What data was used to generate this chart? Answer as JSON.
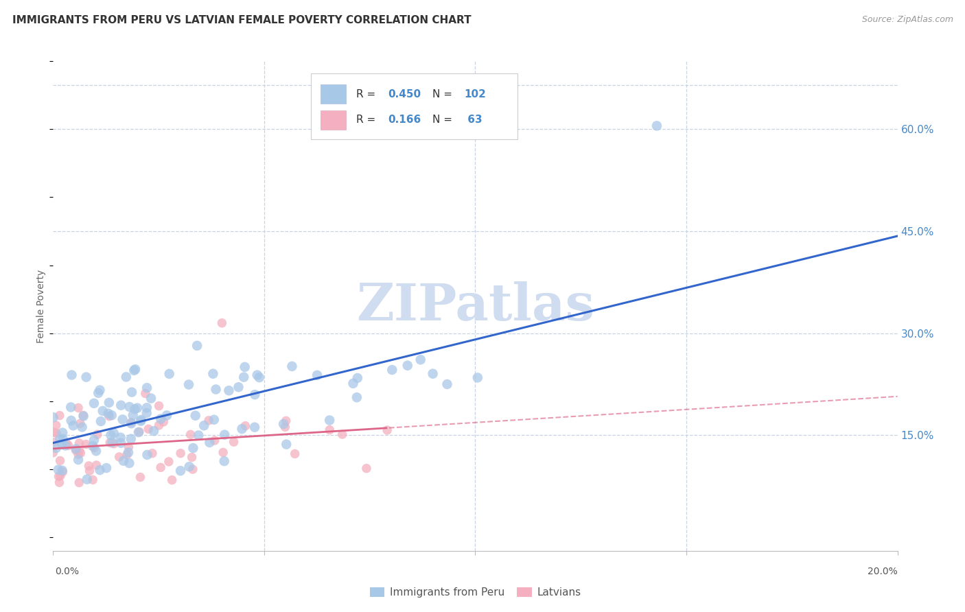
{
  "title": "IMMIGRANTS FROM PERU VS LATVIAN FEMALE POVERTY CORRELATION CHART",
  "source": "Source: ZipAtlas.com",
  "ylabel": "Female Poverty",
  "right_yticks": [
    "60.0%",
    "45.0%",
    "30.0%",
    "15.0%"
  ],
  "right_ytick_vals": [
    0.6,
    0.45,
    0.3,
    0.15
  ],
  "xlim": [
    0.0,
    0.2
  ],
  "ylim": [
    -0.02,
    0.7
  ],
  "blue_R": 0.45,
  "blue_N": 102,
  "pink_R": 0.166,
  "pink_N": 63,
  "blue_color": "#a8c8e8",
  "pink_color": "#f4b0c0",
  "blue_line_color": "#3366cc",
  "pink_line_color": "#dd6688",
  "legend_label_blue": "Immigrants from Peru",
  "legend_label_pink": "Latvians",
  "background_color": "#ffffff",
  "grid_color": "#c8d4e4",
  "watermark": "ZIPatlas",
  "watermark_color": "#d0ddf0",
  "title_color": "#333333",
  "source_color": "#999999",
  "right_axis_color": "#4488cc",
  "legend_R_N_color": "#4488cc"
}
